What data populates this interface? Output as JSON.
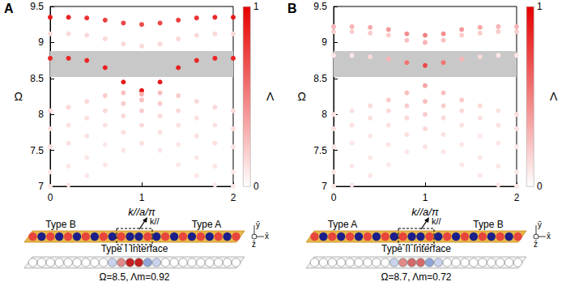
{
  "chart_data": [
    {
      "type": "scatter",
      "title": "A",
      "xlabel": "k//a/π",
      "ylabel": "Ω",
      "xlim": [
        0,
        2
      ],
      "xticks": [
        0,
        1,
        2
      ],
      "ylim": [
        7,
        9.5
      ],
      "yticks": [
        7,
        7.5,
        8,
        8.5,
        9,
        9.5
      ],
      "band_gap": [
        8.52,
        8.88
      ],
      "colorbar": {
        "label": "Λ",
        "range": [
          0,
          1
        ],
        "ticks": [
          0,
          1
        ]
      },
      "bands": [
        [
          [
            0,
            9.35,
            0.9
          ],
          [
            0.2,
            9.35,
            0.85
          ],
          [
            0.4,
            9.34,
            0.8
          ],
          [
            0.6,
            9.31,
            0.75
          ],
          [
            0.8,
            9.27,
            0.72
          ],
          [
            1,
            9.25,
            0.7
          ],
          [
            1.2,
            9.27,
            0.72
          ],
          [
            1.4,
            9.31,
            0.75
          ],
          [
            1.6,
            9.34,
            0.8
          ],
          [
            1.8,
            9.35,
            0.85
          ],
          [
            2,
            9.35,
            0.9
          ]
        ],
        [
          [
            0,
            8.78,
            0.85
          ],
          [
            0.2,
            8.78,
            0.85
          ],
          [
            0.4,
            8.75,
            0.85
          ],
          [
            0.6,
            8.65,
            0.88
          ],
          [
            0.8,
            8.45,
            0.9
          ],
          [
            1,
            8.33,
            0.92
          ],
          [
            1.2,
            8.45,
            0.9
          ],
          [
            1.4,
            8.65,
            0.88
          ],
          [
            1.6,
            8.75,
            0.85
          ],
          [
            1.8,
            8.78,
            0.85
          ],
          [
            2,
            8.78,
            0.85
          ]
        ],
        [
          [
            0,
            9.12,
            0.15
          ],
          [
            0.2,
            9.12,
            0.15
          ],
          [
            0.4,
            9.1,
            0.15
          ],
          [
            0.6,
            9.05,
            0.15
          ],
          [
            0.8,
            8.98,
            0.15
          ],
          [
            1,
            8.95,
            0.15
          ],
          [
            1.2,
            8.98,
            0.15
          ],
          [
            1.4,
            9.05,
            0.15
          ],
          [
            1.6,
            9.1,
            0.15
          ],
          [
            1.8,
            9.12,
            0.15
          ],
          [
            2,
            9.12,
            0.15
          ]
        ],
        [
          [
            0,
            8.05,
            0.15
          ],
          [
            0.2,
            8.1,
            0.15
          ],
          [
            0.4,
            8.18,
            0.15
          ],
          [
            0.6,
            8.26,
            0.2
          ],
          [
            0.8,
            8.3,
            0.25
          ],
          [
            1,
            8.28,
            0.3
          ],
          [
            1.2,
            8.3,
            0.25
          ],
          [
            1.4,
            8.26,
            0.2
          ],
          [
            1.6,
            8.18,
            0.15
          ],
          [
            1.8,
            8.1,
            0.15
          ],
          [
            2,
            8.05,
            0.15
          ]
        ],
        [
          [
            0,
            7.8,
            0.12
          ],
          [
            0.2,
            7.85,
            0.12
          ],
          [
            0.4,
            7.95,
            0.12
          ],
          [
            0.6,
            8.05,
            0.15
          ],
          [
            0.8,
            8.15,
            0.2
          ],
          [
            1,
            8.2,
            0.25
          ],
          [
            1.2,
            8.15,
            0.2
          ],
          [
            1.4,
            8.05,
            0.15
          ],
          [
            1.6,
            7.95,
            0.12
          ],
          [
            1.8,
            7.85,
            0.12
          ],
          [
            2,
            7.8,
            0.12
          ]
        ],
        [
          [
            0,
            7.55,
            0.12
          ],
          [
            0.2,
            7.6,
            0.12
          ],
          [
            0.4,
            7.7,
            0.12
          ],
          [
            0.6,
            7.85,
            0.12
          ],
          [
            0.8,
            7.98,
            0.15
          ],
          [
            1,
            8.05,
            0.2
          ],
          [
            1.2,
            7.98,
            0.15
          ],
          [
            1.4,
            7.85,
            0.12
          ],
          [
            1.6,
            7.7,
            0.12
          ],
          [
            1.8,
            7.6,
            0.12
          ],
          [
            2,
            7.55,
            0.12
          ]
        ],
        [
          [
            0,
            7.2,
            0.1
          ],
          [
            0.2,
            7.28,
            0.1
          ],
          [
            0.4,
            7.4,
            0.1
          ],
          [
            0.6,
            7.58,
            0.1
          ],
          [
            0.8,
            7.75,
            0.12
          ],
          [
            1,
            7.85,
            0.15
          ],
          [
            1.2,
            7.75,
            0.12
          ],
          [
            1.4,
            7.58,
            0.1
          ],
          [
            1.6,
            7.4,
            0.1
          ],
          [
            1.8,
            7.28,
            0.1
          ],
          [
            2,
            7.2,
            0.1
          ]
        ],
        [
          [
            0,
            7.0,
            0.1
          ],
          [
            0.2,
            7.02,
            0.1
          ],
          [
            0.4,
            7.15,
            0.1
          ],
          [
            0.6,
            7.3,
            0.1
          ],
          [
            0.8,
            7.5,
            0.1
          ],
          [
            1,
            7.6,
            0.12
          ],
          [
            1.2,
            7.5,
            0.1
          ],
          [
            1.4,
            7.3,
            0.1
          ],
          [
            1.6,
            7.15,
            0.1
          ],
          [
            1.8,
            7.02,
            0.1
          ],
          [
            2,
            7.0,
            0.1
          ]
        ]
      ]
    },
    {
      "type": "scatter",
      "title": "B",
      "xlabel": "k//a/π",
      "ylabel": "Ω",
      "xlim": [
        0,
        2
      ],
      "xticks": [
        0,
        1,
        2
      ],
      "ylim": [
        7,
        9.5
      ],
      "yticks": [
        7,
        7.5,
        8,
        8.5,
        9,
        9.5
      ],
      "band_gap": [
        8.52,
        8.88
      ],
      "colorbar": {
        "label": "Λ",
        "range": [
          0,
          1
        ],
        "ticks": [
          0,
          1
        ]
      },
      "bands": [
        [
          [
            0,
            9.22,
            0.3
          ],
          [
            0.2,
            9.22,
            0.3
          ],
          [
            0.4,
            9.21,
            0.35
          ],
          [
            0.6,
            9.18,
            0.4
          ],
          [
            0.8,
            9.12,
            0.45
          ],
          [
            1,
            9.1,
            0.5
          ],
          [
            1.2,
            9.12,
            0.45
          ],
          [
            1.4,
            9.18,
            0.4
          ],
          [
            1.6,
            9.21,
            0.35
          ],
          [
            1.8,
            9.22,
            0.3
          ],
          [
            2,
            9.22,
            0.3
          ]
        ],
        [
          [
            0,
            9.15,
            0.2
          ],
          [
            0.2,
            9.15,
            0.2
          ],
          [
            0.4,
            9.13,
            0.2
          ],
          [
            0.6,
            9.1,
            0.2
          ],
          [
            0.8,
            9.03,
            0.25
          ],
          [
            1,
            9.0,
            0.3
          ],
          [
            1.2,
            9.03,
            0.25
          ],
          [
            1.4,
            9.1,
            0.2
          ],
          [
            1.6,
            9.13,
            0.2
          ],
          [
            1.8,
            9.15,
            0.2
          ],
          [
            2,
            9.15,
            0.2
          ]
        ],
        [
          [
            0,
            8.82,
            0.1
          ],
          [
            0.2,
            8.82,
            0.1
          ],
          [
            0.4,
            8.8,
            0.15
          ],
          [
            0.6,
            8.77,
            0.3
          ],
          [
            0.8,
            8.72,
            0.55
          ],
          [
            1,
            8.68,
            0.72
          ],
          [
            1.2,
            8.72,
            0.55
          ],
          [
            1.4,
            8.77,
            0.3
          ],
          [
            1.6,
            8.8,
            0.15
          ],
          [
            1.8,
            8.82,
            0.1
          ],
          [
            2,
            8.82,
            0.1
          ]
        ],
        [
          [
            0,
            8.0,
            0.12
          ],
          [
            0.2,
            8.05,
            0.12
          ],
          [
            0.4,
            8.12,
            0.15
          ],
          [
            0.6,
            8.2,
            0.2
          ],
          [
            0.8,
            8.3,
            0.25
          ],
          [
            1,
            8.4,
            0.35
          ],
          [
            1.2,
            8.3,
            0.25
          ],
          [
            1.4,
            8.2,
            0.2
          ],
          [
            1.6,
            8.12,
            0.15
          ],
          [
            1.8,
            8.05,
            0.12
          ],
          [
            2,
            8.0,
            0.12
          ]
        ],
        [
          [
            0,
            7.8,
            0.12
          ],
          [
            0.2,
            7.85,
            0.12
          ],
          [
            0.4,
            7.95,
            0.12
          ],
          [
            0.6,
            8.05,
            0.15
          ],
          [
            0.8,
            8.12,
            0.2
          ],
          [
            1,
            8.18,
            0.25
          ],
          [
            1.2,
            8.12,
            0.2
          ],
          [
            1.4,
            8.05,
            0.15
          ],
          [
            1.6,
            7.95,
            0.12
          ],
          [
            1.8,
            7.85,
            0.12
          ],
          [
            2,
            7.8,
            0.12
          ]
        ],
        [
          [
            0,
            7.55,
            0.1
          ],
          [
            0.2,
            7.6,
            0.1
          ],
          [
            0.4,
            7.7,
            0.1
          ],
          [
            0.6,
            7.85,
            0.12
          ],
          [
            0.8,
            7.95,
            0.15
          ],
          [
            1,
            8.0,
            0.2
          ],
          [
            1.2,
            7.95,
            0.15
          ],
          [
            1.4,
            7.85,
            0.12
          ],
          [
            1.6,
            7.7,
            0.1
          ],
          [
            1.8,
            7.6,
            0.1
          ],
          [
            2,
            7.55,
            0.1
          ]
        ],
        [
          [
            0,
            7.2,
            0.1
          ],
          [
            0.2,
            7.28,
            0.1
          ],
          [
            0.4,
            7.4,
            0.1
          ],
          [
            0.6,
            7.58,
            0.1
          ],
          [
            0.8,
            7.72,
            0.12
          ],
          [
            1,
            7.8,
            0.15
          ],
          [
            1.2,
            7.72,
            0.12
          ],
          [
            1.4,
            7.58,
            0.1
          ],
          [
            1.6,
            7.4,
            0.1
          ],
          [
            1.8,
            7.28,
            0.1
          ],
          [
            2,
            7.2,
            0.1
          ]
        ],
        [
          [
            0,
            7.0,
            0.1
          ],
          [
            0.2,
            7.02,
            0.1
          ],
          [
            0.4,
            7.15,
            0.1
          ],
          [
            0.6,
            7.3,
            0.1
          ],
          [
            0.8,
            7.48,
            0.1
          ],
          [
            1,
            7.55,
            0.12
          ],
          [
            1.2,
            7.48,
            0.1
          ],
          [
            1.4,
            7.3,
            0.1
          ],
          [
            1.6,
            7.15,
            0.1
          ],
          [
            1.8,
            7.02,
            0.1
          ],
          [
            2,
            7.0,
            0.1
          ]
        ]
      ]
    }
  ],
  "schematics": [
    {
      "left_label": "Type B",
      "right_label": "Type A",
      "k_label": "k//",
      "interface_label": "Type I Interface",
      "caption": "Ω=8.5, Λm=0.92",
      "axes": [
        "ȳ",
        "x̄",
        "z̄"
      ]
    },
    {
      "left_label": "Type A",
      "right_label": "Type B",
      "k_label": "k//",
      "interface_label": "Type II Interface",
      "caption": "Ω=8.7, Λm=0.72",
      "axes": [
        "ȳ",
        "x̄",
        "z̄"
      ]
    }
  ]
}
